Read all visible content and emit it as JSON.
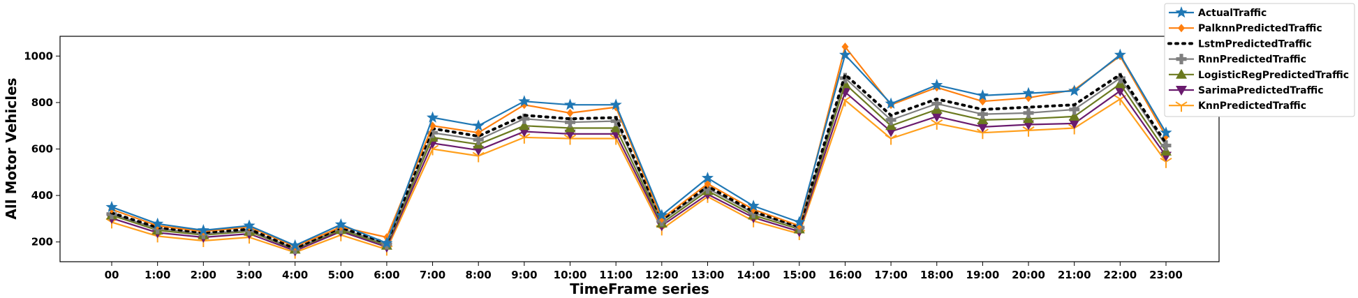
{
  "chart_data": {
    "type": "line",
    "xlabel": "TimeFrame series",
    "ylabel": "All Motor Vehicles",
    "categories": [
      "00",
      "1:00",
      "2:00",
      "3:00",
      "4:00",
      "5:00",
      "6:00",
      "7:00",
      "8:00",
      "9:00",
      "10:00",
      "11:00",
      "12:00",
      "13:00",
      "14:00",
      "15:00",
      "16:00",
      "17:00",
      "18:00",
      "19:00",
      "20:00",
      "21:00",
      "22:00",
      "23:00"
    ],
    "ylim": [
      115,
      1085
    ],
    "yticks": [
      200,
      400,
      600,
      800,
      1000
    ],
    "grid": false,
    "legend_position": "top-right",
    "series": [
      {
        "name": "ActualTraffic",
        "color": "#1f77b4",
        "marker": "star",
        "linestyle": "solid",
        "values": [
          350,
          278,
          250,
          270,
          185,
          275,
          195,
          735,
          700,
          805,
          790,
          790,
          315,
          475,
          355,
          285,
          1005,
          795,
          875,
          830,
          840,
          850,
          1005,
          670
        ]
      },
      {
        "name": "PalknnPredictedTraffic",
        "color": "#ff7f0e",
        "marker": "diamond",
        "linestyle": "solid",
        "values": [
          340,
          270,
          245,
          265,
          180,
          265,
          220,
          700,
          670,
          790,
          755,
          780,
          300,
          450,
          340,
          270,
          1040,
          790,
          865,
          805,
          820,
          855,
          1000,
          655
        ]
      },
      {
        "name": "LstmPredictedTraffic",
        "color": "#000000",
        "marker": "none",
        "linestyle": "dotted",
        "values": [
          325,
          262,
          240,
          255,
          172,
          262,
          195,
          688,
          655,
          745,
          730,
          735,
          295,
          440,
          330,
          265,
          920,
          745,
          815,
          770,
          780,
          790,
          920,
          625
        ]
      },
      {
        "name": "RnnPredictedTraffic",
        "color": "#7f7f7f",
        "marker": "plus",
        "linestyle": "solid",
        "values": [
          320,
          258,
          235,
          250,
          170,
          258,
          190,
          670,
          640,
          730,
          715,
          720,
          290,
          430,
          325,
          262,
          905,
          725,
          795,
          750,
          755,
          770,
          905,
          615
        ]
      },
      {
        "name": "LogisticRegPredictedTraffic",
        "color": "#6b7a1f",
        "marker": "triangle-up",
        "linestyle": "solid",
        "values": [
          315,
          250,
          230,
          245,
          168,
          252,
          185,
          650,
          620,
          700,
          690,
          690,
          280,
          420,
          315,
          255,
          880,
          700,
          770,
          725,
          730,
          740,
          880,
          590
        ]
      },
      {
        "name": "SarimaPredictedTraffic",
        "color": "#6a1b6e",
        "marker": "triangle-down",
        "linestyle": "solid",
        "values": [
          302,
          240,
          220,
          235,
          162,
          245,
          178,
          625,
          595,
          675,
          665,
          665,
          270,
          405,
          305,
          245,
          845,
          675,
          740,
          695,
          705,
          710,
          850,
          570
        ]
      },
      {
        "name": "KnnPredictedTraffic",
        "color": "#ff9f1c",
        "marker": "tri-down",
        "linestyle": "solid",
        "values": [
          285,
          225,
          205,
          220,
          155,
          230,
          168,
          600,
          570,
          650,
          645,
          645,
          255,
          395,
          290,
          235,
          810,
          645,
          710,
          670,
          680,
          690,
          815,
          545
        ]
      }
    ]
  }
}
